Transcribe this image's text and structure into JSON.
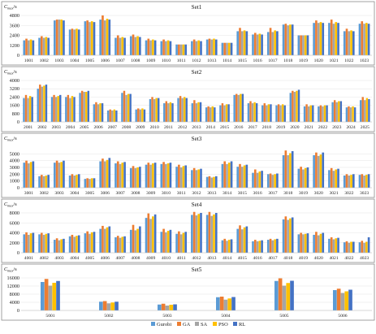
{
  "legend": {
    "items": [
      {
        "name": "Gurobi",
        "color": "#5B9BD5"
      },
      {
        "name": "GA",
        "color": "#ED7D31"
      },
      {
        "name": "SA",
        "color": "#A5A5A5"
      },
      {
        "name": "PSO",
        "color": "#FFC000"
      },
      {
        "name": "RL",
        "color": "#4472C4"
      }
    ]
  },
  "chart_data": [
    {
      "type": "bar",
      "title": "Set1",
      "ylabel_main": "C",
      "ylabel_sub": "max",
      "ylabel_unit": "/s",
      "ylim": [
        0,
        4800
      ],
      "yticks": [
        0,
        1200,
        2400,
        3600,
        4800
      ],
      "series_order": [
        "Gurobi",
        "GA",
        "SA",
        "PSO",
        "RL"
      ],
      "categories": [
        "1001",
        "1002",
        "1003",
        "1004",
        "1005",
        "1006",
        "1007",
        "1008",
        "1009",
        "1010",
        "1011",
        "1012",
        "1013",
        "1014",
        "1015",
        "1016",
        "1017",
        "1018",
        "1019",
        "1020",
        "1021",
        "1022",
        "1023"
      ],
      "series": [
        {
          "name": "Gurobi",
          "values": [
            1800,
            2100,
            4200,
            3100,
            4100,
            4300,
            2100,
            2300,
            1800,
            1700,
            1300,
            1700,
            1900,
            1500,
            2900,
            2500,
            2800,
            3700,
            2400,
            3900,
            3900,
            2900,
            3800
          ]
        },
        {
          "name": "GA",
          "values": [
            2000,
            2300,
            4300,
            3200,
            4200,
            4800,
            2400,
            2500,
            2000,
            1900,
            1300,
            1900,
            2000,
            1500,
            3300,
            2700,
            3300,
            3800,
            2400,
            4200,
            4300,
            3200,
            4100
          ]
        },
        {
          "name": "SA",
          "values": [
            1800,
            2100,
            4300,
            3100,
            4000,
            4200,
            2100,
            2200,
            1800,
            1700,
            1300,
            1700,
            1900,
            1500,
            2900,
            2500,
            2800,
            3600,
            2400,
            3900,
            3800,
            2900,
            3800
          ]
        },
        {
          "name": "PSO",
          "values": [
            1900,
            2200,
            4300,
            3200,
            4100,
            4400,
            2200,
            2300,
            1900,
            1800,
            1300,
            1800,
            2000,
            1500,
            3000,
            2600,
            3000,
            3700,
            2400,
            4000,
            4000,
            3000,
            3900
          ]
        },
        {
          "name": "RL",
          "values": [
            1800,
            2100,
            4200,
            3100,
            4000,
            4300,
            2100,
            2200,
            1800,
            1700,
            1300,
            1700,
            1900,
            1500,
            2900,
            2500,
            2900,
            3700,
            2400,
            3900,
            3900,
            2900,
            3800
          ]
        }
      ]
    },
    {
      "type": "bar",
      "title": "Set2",
      "ylabel_main": "C",
      "ylabel_sub": "max",
      "ylabel_unit": "/s",
      "ylim": [
        0,
        4000
      ],
      "yticks": [
        0,
        800,
        1600,
        2400,
        3200,
        4000
      ],
      "series_order": [
        "Gurobi",
        "GA",
        "SA",
        "PSO",
        "RL"
      ],
      "categories": [
        "2001",
        "2002",
        "2003",
        "2004",
        "2005",
        "2006",
        "2007",
        "2008",
        "2009",
        "2010",
        "2011",
        "2012",
        "2013",
        "2014",
        "2015",
        "2016",
        "2017",
        "2018",
        "2019",
        "2020",
        "2021",
        "2022",
        "2023",
        "2024",
        "2025"
      ],
      "series": [
        {
          "name": "Gurobi",
          "values": [
            2300,
            3200,
            2400,
            2400,
            2800,
            1700,
            1100,
            2800,
            1200,
            2200,
            1800,
            2300,
            1800,
            1400,
            1600,
            2600,
            1800,
            1600,
            1600,
            2800,
            1500,
            1500,
            1900,
            1400,
            2100
          ]
        },
        {
          "name": "GA",
          "values": [
            2600,
            3600,
            2600,
            2600,
            3000,
            1900,
            1200,
            3000,
            1300,
            2400,
            2000,
            2500,
            2100,
            1500,
            1800,
            2700,
            2000,
            1800,
            1700,
            3000,
            1700,
            1600,
            2100,
            1500,
            2400
          ]
        },
        {
          "name": "SA",
          "values": [
            2300,
            3400,
            2400,
            2300,
            2900,
            1700,
            1100,
            2600,
            1200,
            2200,
            1800,
            2300,
            1800,
            1400,
            1600,
            2600,
            1800,
            1600,
            1600,
            2900,
            1500,
            1500,
            1900,
            1400,
            2100
          ]
        },
        {
          "name": "PSO",
          "values": [
            2500,
            3500,
            2500,
            2500,
            2900,
            1800,
            1200,
            2700,
            1300,
            2300,
            1900,
            2400,
            1900,
            1500,
            1700,
            2700,
            1900,
            1700,
            1700,
            3000,
            1600,
            1600,
            2000,
            1500,
            2300
          ]
        },
        {
          "name": "RL",
          "values": [
            2400,
            3600,
            2600,
            2400,
            3000,
            1800,
            1100,
            2700,
            1200,
            2300,
            1800,
            2300,
            1900,
            1400,
            1700,
            2700,
            1800,
            1700,
            1600,
            3100,
            1600,
            1600,
            2000,
            1400,
            2200
          ]
        }
      ]
    },
    {
      "type": "bar",
      "title": "Set3",
      "ylabel_main": "C",
      "ylabel_sub": "max",
      "ylabel_unit": "/s",
      "ylim": [
        0,
        6000
      ],
      "yticks": [
        0,
        1000,
        2000,
        3000,
        4000,
        5000
      ],
      "series_order": [
        "Gurobi",
        "GA",
        "SA",
        "PSO",
        "RL"
      ],
      "categories": [
        "3001",
        "3002",
        "3003",
        "3004",
        "3005",
        "3006",
        "3007",
        "3008",
        "3009",
        "3010",
        "3011",
        "3012",
        "3013",
        "3014",
        "3015",
        "3016",
        "3017",
        "3018",
        "3019",
        "3020",
        "3021",
        "3022",
        "3023"
      ],
      "series": [
        {
          "name": "Gurobi",
          "values": [
            3700,
            1700,
            3700,
            1800,
            1300,
            3900,
            3600,
            2900,
            3400,
            3500,
            3100,
            2600,
            1600,
            3500,
            3100,
            2200,
            2000,
            4800,
            2800,
            4800,
            2600,
            1800,
            1900
          ]
        },
        {
          "name": "GA",
          "values": [
            4000,
            1900,
            4000,
            2000,
            1400,
            4300,
            3900,
            3200,
            3700,
            3800,
            3400,
            2900,
            1700,
            3900,
            3500,
            2700,
            2100,
            5500,
            3100,
            5200,
            2900,
            2000,
            2000
          ]
        },
        {
          "name": "SA",
          "values": [
            3600,
            1700,
            3700,
            1800,
            1300,
            3900,
            3500,
            2900,
            3400,
            3500,
            3000,
            2600,
            1500,
            3500,
            3100,
            2200,
            1900,
            4800,
            2700,
            4700,
            2500,
            1800,
            1800
          ]
        },
        {
          "name": "PSO",
          "values": [
            3800,
            1800,
            3800,
            1900,
            1400,
            4100,
            3700,
            3000,
            3600,
            3600,
            3200,
            2700,
            1600,
            3700,
            3300,
            2400,
            2000,
            5100,
            2900,
            4900,
            2700,
            1900,
            1900
          ]
        },
        {
          "name": "RL",
          "values": [
            3900,
            1900,
            4000,
            2000,
            1400,
            4400,
            3800,
            3100,
            3700,
            3700,
            3300,
            2800,
            1700,
            3900,
            3400,
            2500,
            2100,
            5400,
            3000,
            5200,
            2800,
            2000,
            2000
          ]
        }
      ]
    },
    {
      "type": "bar",
      "title": "Set4",
      "ylabel_main": "C",
      "ylabel_sub": "max",
      "ylabel_unit": "/s",
      "ylim": [
        0,
        8000
      ],
      "yticks": [
        0,
        2000,
        4000,
        6000,
        8000
      ],
      "series_order": [
        "Gurobi",
        "GA",
        "SA",
        "PSO",
        "RL"
      ],
      "categories": [
        "4001",
        "4002",
        "4003",
        "4004",
        "4005",
        "4006",
        "4007",
        "4008",
        "4009",
        "4010",
        "4011",
        "4012",
        "4013",
        "4014",
        "4015",
        "4016",
        "4017",
        "4018",
        "4019",
        "4020",
        "4021",
        "4022",
        "4023"
      ],
      "series": [
        {
          "name": "Gurobi",
          "values": [
            3700,
            3700,
            2600,
            3300,
            3900,
            4800,
            3100,
            4600,
            7000,
            4200,
            3800,
            7600,
            7600,
            2500,
            4800,
            2300,
            2600,
            6700,
            3700,
            3600,
            2800,
            2100,
            2100
          ]
        },
        {
          "name": "GA",
          "values": [
            4100,
            4000,
            2900,
            3600,
            4300,
            5400,
            3400,
            5600,
            7900,
            4800,
            4300,
            8200,
            8200,
            2800,
            5500,
            2600,
            2800,
            7300,
            4000,
            4200,
            3100,
            2300,
            2400
          ]
        },
        {
          "name": "SA",
          "values": [
            3600,
            3600,
            2500,
            3200,
            3800,
            4800,
            3000,
            4500,
            6800,
            4100,
            3700,
            7500,
            7400,
            2400,
            4700,
            2300,
            2500,
            6600,
            3700,
            3500,
            2700,
            2000,
            2000
          ]
        },
        {
          "name": "PSO",
          "values": [
            3900,
            3800,
            2700,
            3400,
            4100,
            5100,
            3200,
            4800,
            7300,
            4400,
            4000,
            7800,
            7700,
            2600,
            5100,
            2400,
            2700,
            6900,
            3800,
            3800,
            2900,
            2200,
            2200
          ]
        },
        {
          "name": "RL",
          "values": [
            4000,
            3900,
            2800,
            3500,
            4200,
            5300,
            3300,
            5300,
            7700,
            4600,
            4200,
            8000,
            8000,
            2700,
            5300,
            2500,
            2800,
            7100,
            3900,
            4000,
            3000,
            2200,
            3100
          ]
        }
      ]
    },
    {
      "type": "bar",
      "title": "Set5",
      "ylabel_main": "C",
      "ylabel_sub": "max",
      "ylabel_unit": "/s",
      "ylim": [
        0,
        16000
      ],
      "yticks": [
        0,
        4000,
        8000,
        12000,
        16000
      ],
      "series_order": [
        "Gurobi",
        "GA",
        "SA",
        "PSO",
        "RL"
      ],
      "categories": [
        "5001",
        "5002",
        "5003",
        "5004",
        "5005",
        "5006"
      ],
      "series": [
        {
          "name": "Gurobi",
          "values": [
            14000,
            4300,
            2900,
            6500,
            14500,
            10000
          ]
        },
        {
          "name": "GA",
          "values": [
            15500,
            4600,
            3300,
            6800,
            15800,
            10700
          ]
        },
        {
          "name": "SA",
          "values": [
            12200,
            3500,
            2400,
            5300,
            12200,
            8600
          ]
        },
        {
          "name": "PSO",
          "values": [
            13600,
            3900,
            2800,
            5900,
            13500,
            9400
          ]
        },
        {
          "name": "RL",
          "values": [
            14500,
            4300,
            3000,
            6600,
            14600,
            10200
          ]
        }
      ]
    }
  ]
}
